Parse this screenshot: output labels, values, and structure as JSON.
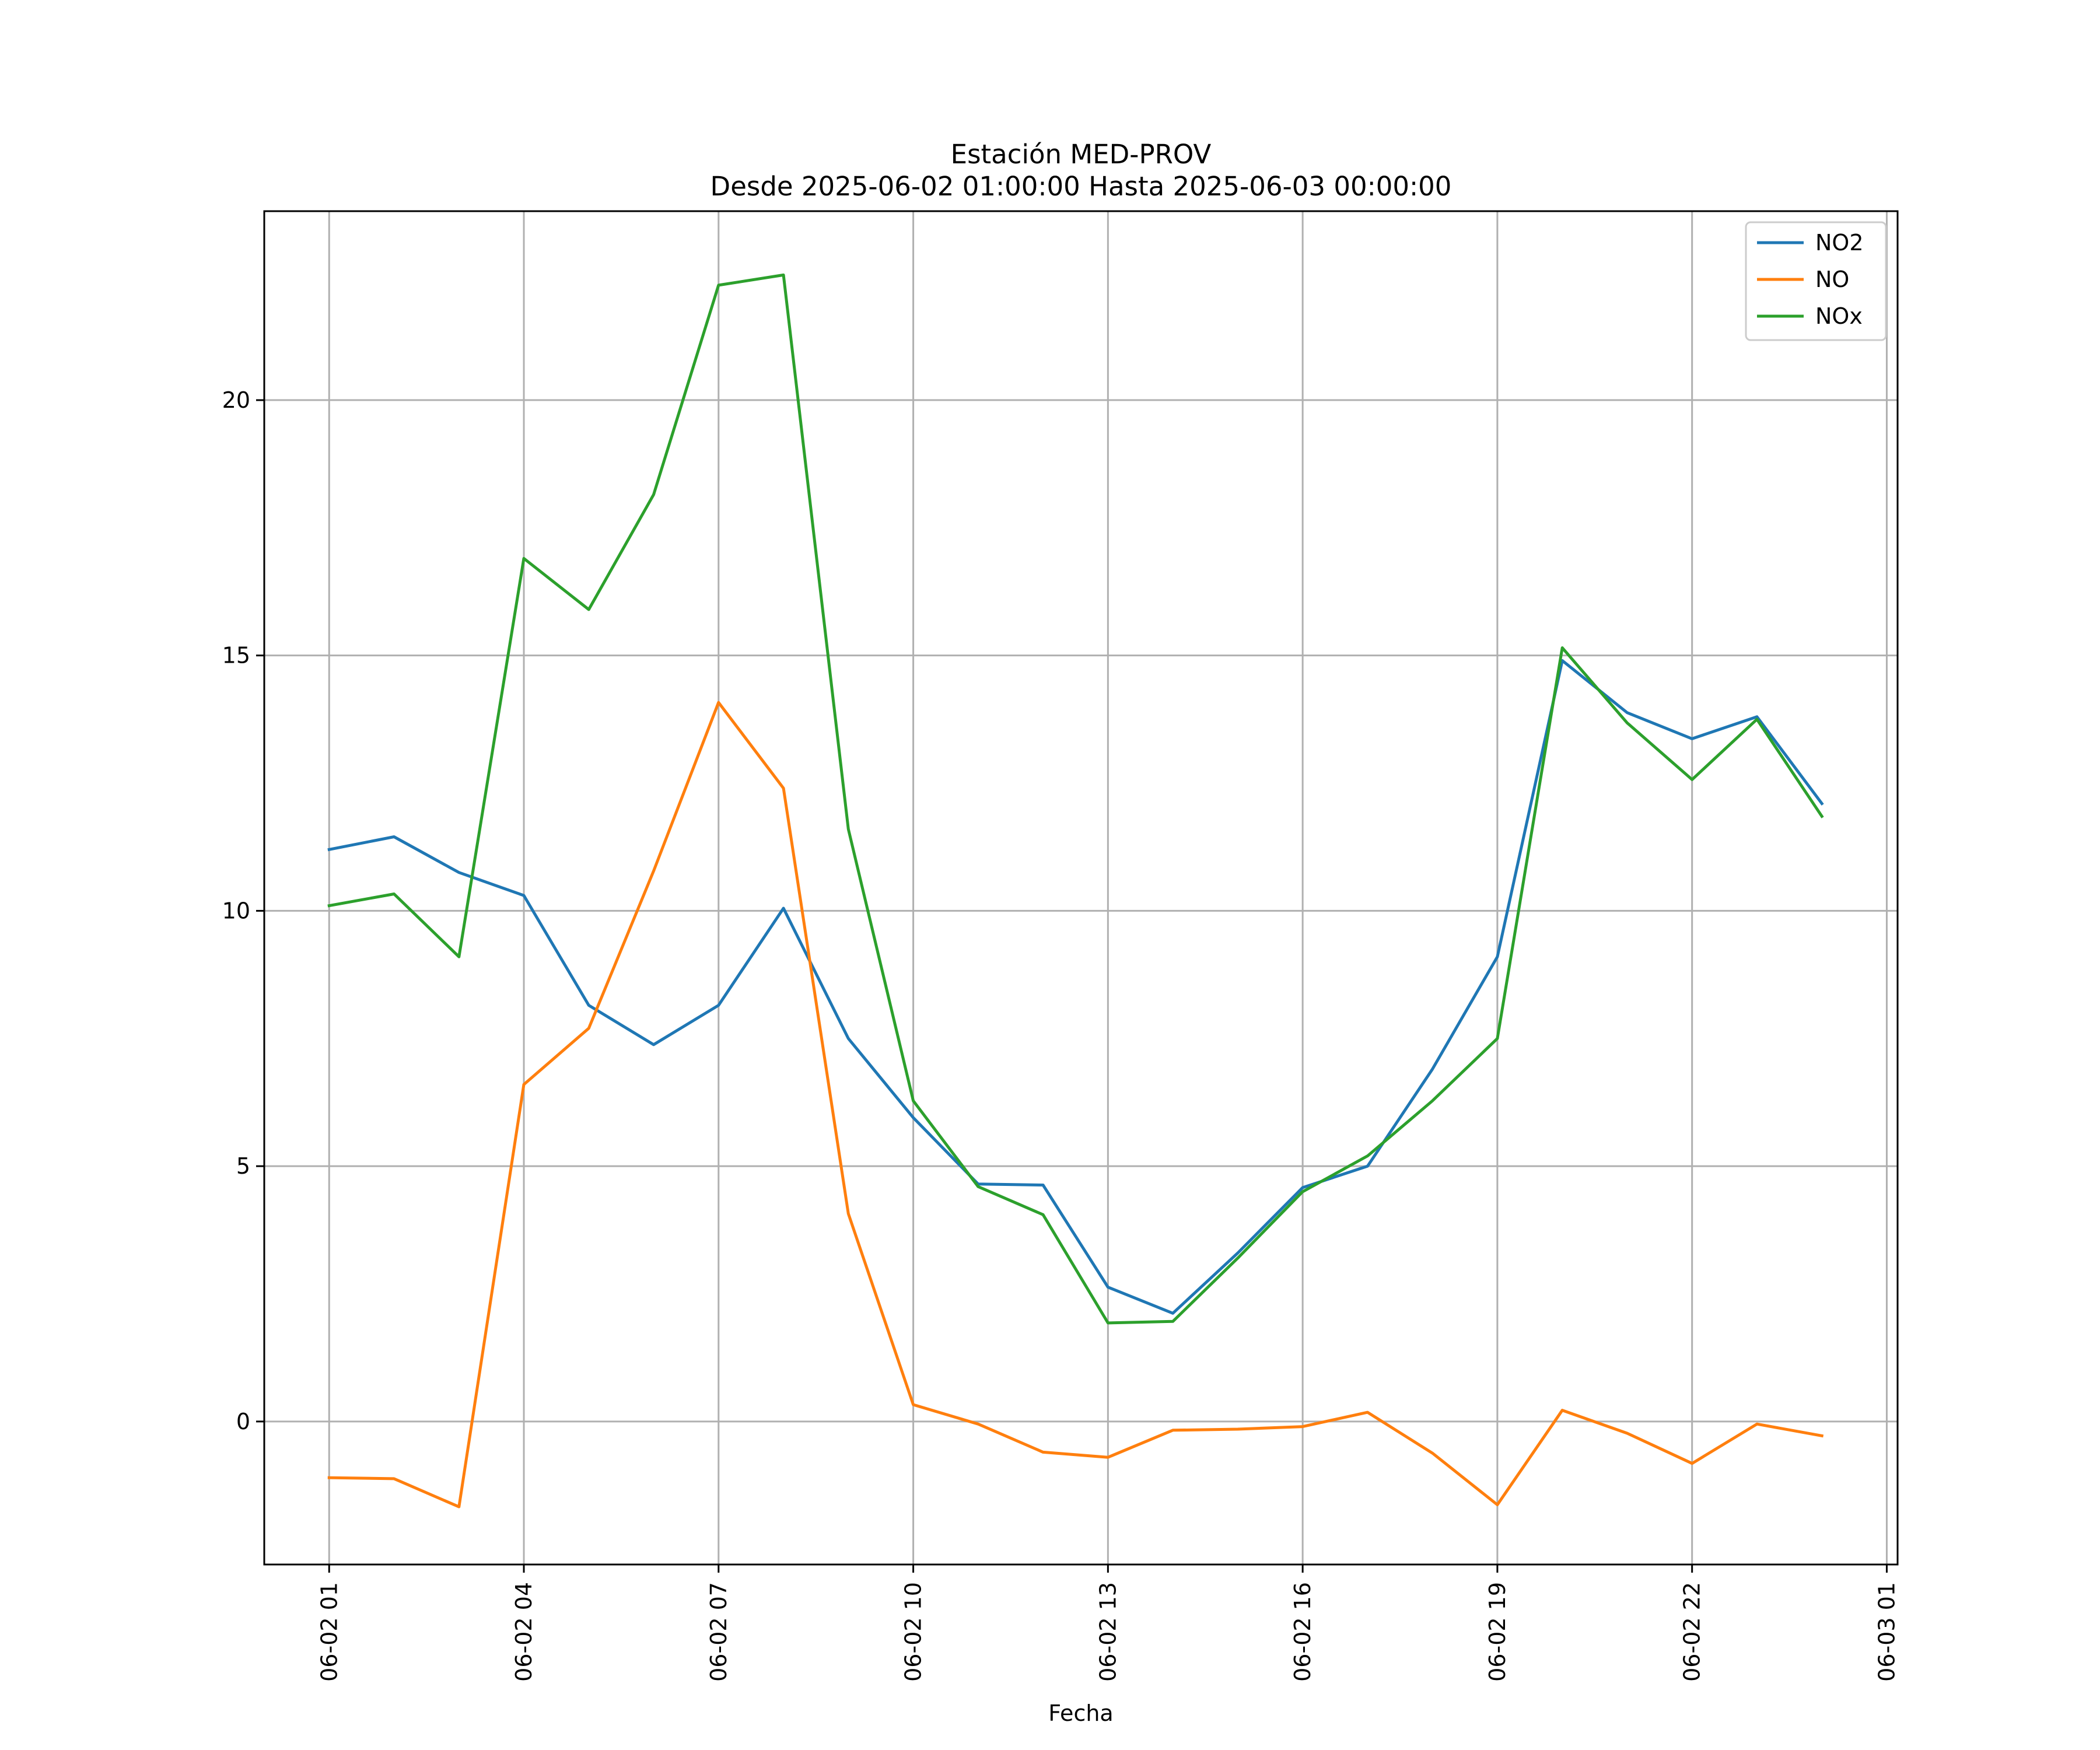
{
  "chart_data": {
    "type": "line",
    "title": "Estación MED-PROV",
    "subtitle": "Desde 2025-06-02 01:00:00 Hasta 2025-06-03 00:00:00",
    "xlabel": "Fecha",
    "ylabel": "",
    "x": [
      "2025-06-02 01:00",
      "2025-06-02 02:00",
      "2025-06-02 03:00",
      "2025-06-02 04:00",
      "2025-06-02 05:00",
      "2025-06-02 06:00",
      "2025-06-02 07:00",
      "2025-06-02 08:00",
      "2025-06-02 09:00",
      "2025-06-02 10:00",
      "2025-06-02 11:00",
      "2025-06-02 12:00",
      "2025-06-02 13:00",
      "2025-06-02 14:00",
      "2025-06-02 15:00",
      "2025-06-02 16:00",
      "2025-06-02 17:00",
      "2025-06-02 18:00",
      "2025-06-02 19:00",
      "2025-06-02 20:00",
      "2025-06-02 21:00",
      "2025-06-02 22:00",
      "2025-06-02 23:00",
      "2025-06-03 00:00"
    ],
    "xlim": [
      "2025-06-02 00:00",
      "2025-06-03 01:10"
    ],
    "ylim": [
      -2.8,
      23.7
    ],
    "x_ticks": [
      "06-02 01",
      "06-02 04",
      "06-02 07",
      "06-02 10",
      "06-02 13",
      "06-02 16",
      "06-02 19",
      "06-02 22",
      "06-03 01"
    ],
    "y_ticks": [
      "0",
      "5",
      "10",
      "15",
      "20"
    ],
    "grid": true,
    "legend_position": "top-right",
    "series": [
      {
        "name": "NO2",
        "color": "#1f77b4",
        "values": [
          11.2,
          11.45,
          10.75,
          10.3,
          8.15,
          7.38,
          8.15,
          10.05,
          7.5,
          5.95,
          4.65,
          4.63,
          2.63,
          2.12,
          3.3,
          4.58,
          5.0,
          6.9,
          9.1,
          14.9,
          13.88,
          13.37,
          13.8,
          12.1
        ]
      },
      {
        "name": "NO",
        "color": "#ff7f0e",
        "values": [
          -1.1,
          -1.12,
          -1.67,
          6.6,
          7.7,
          10.78,
          14.08,
          12.4,
          4.07,
          0.33,
          -0.05,
          -0.6,
          -0.7,
          -0.17,
          -0.15,
          -0.1,
          0.18,
          -0.62,
          -1.63,
          0.22,
          -0.23,
          -0.82,
          -0.05,
          -0.28
        ]
      },
      {
        "name": "NOx",
        "color": "#2ca02c",
        "values": [
          10.1,
          10.33,
          9.1,
          16.9,
          15.9,
          18.15,
          22.25,
          22.45,
          11.6,
          6.28,
          4.6,
          4.05,
          1.93,
          1.96,
          3.2,
          4.5,
          5.2,
          6.28,
          7.5,
          15.15,
          13.68,
          12.57,
          13.75,
          11.85
        ]
      }
    ]
  }
}
